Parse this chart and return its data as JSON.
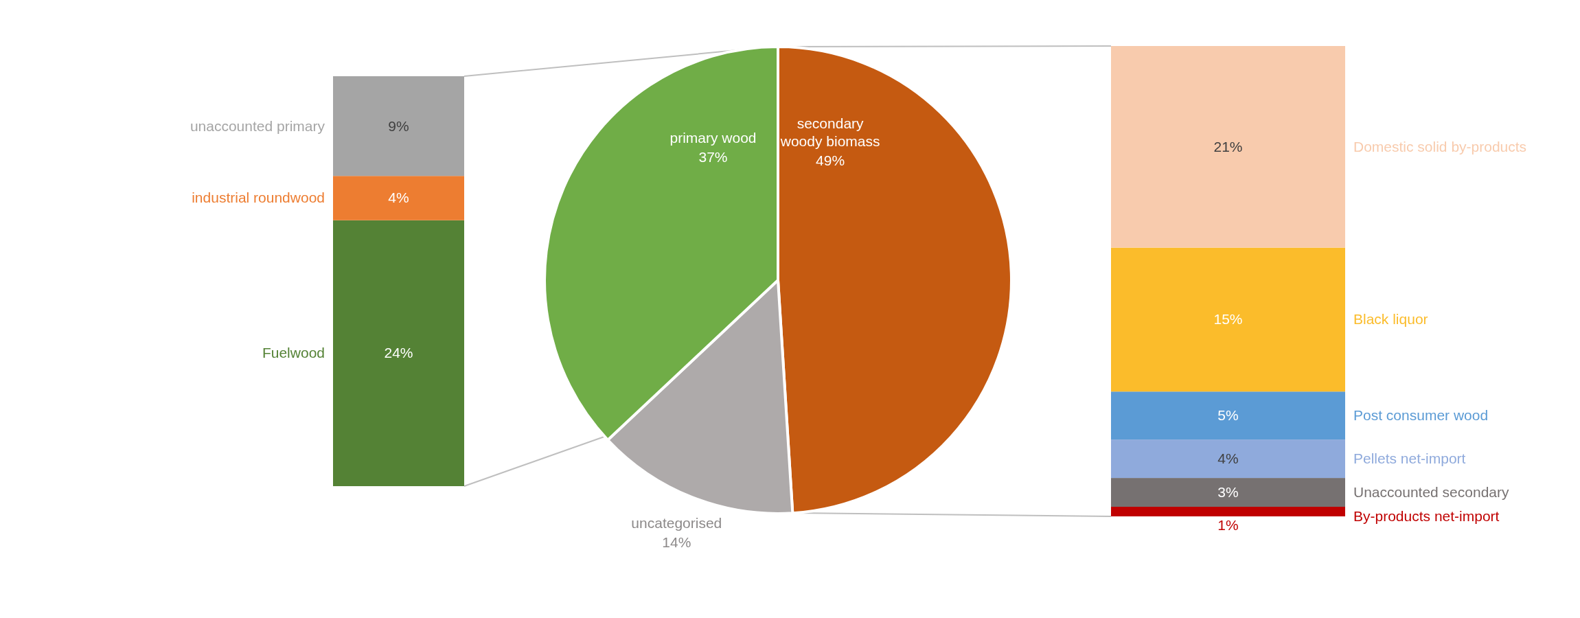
{
  "chart_data": [
    {
      "type": "bar",
      "stacked": true,
      "categories": [
        null
      ],
      "series": [
        {
          "name": "Fuelwood",
          "color": "#548235",
          "values": [
            24
          ],
          "value_labels": [
            "24%"
          ]
        },
        {
          "name": "industrial roundwood",
          "color": "#ed7d31",
          "values": [
            4
          ],
          "value_labels": [
            "4%"
          ]
        },
        {
          "name": "unaccounted primary",
          "color": "#a5a5a5",
          "values": [
            9
          ],
          "value_labels": [
            "9%"
          ]
        }
      ]
    },
    {
      "type": "pie",
      "categories": [
        "secondary woody biomass",
        "uncategorised",
        "primary wood"
      ],
      "values": [
        49,
        14,
        37
      ],
      "colors": [
        "#c55a11",
        "#aeaaaa",
        "#70ad47"
      ],
      "value_labels": [
        "49%",
        "14%",
        "37%"
      ]
    },
    {
      "type": "bar",
      "stacked": true,
      "categories": [
        null
      ],
      "series": [
        {
          "name": "By-products net-import",
          "color": "#c00000",
          "values": [
            1
          ],
          "value_labels": [
            "1%"
          ]
        },
        {
          "name": "Unaccounted secondary",
          "color": "#767171",
          "values": [
            3
          ],
          "value_labels": [
            "3%"
          ]
        },
        {
          "name": "Pellets net-import",
          "color": "#8faadc",
          "values": [
            4
          ],
          "value_labels": [
            "4%"
          ]
        },
        {
          "name": "Post consumer wood",
          "color": "#5b9bd5",
          "values": [
            5
          ],
          "value_labels": [
            "5%"
          ]
        },
        {
          "name": "Black liquor",
          "color": "#fbbc2b",
          "values": [
            15
          ],
          "value_labels": [
            "15%"
          ]
        },
        {
          "name": "Domestic solid by-products",
          "color": "#f8cbad",
          "values": [
            21
          ],
          "value_labels": [
            "21%"
          ]
        }
      ]
    }
  ]
}
